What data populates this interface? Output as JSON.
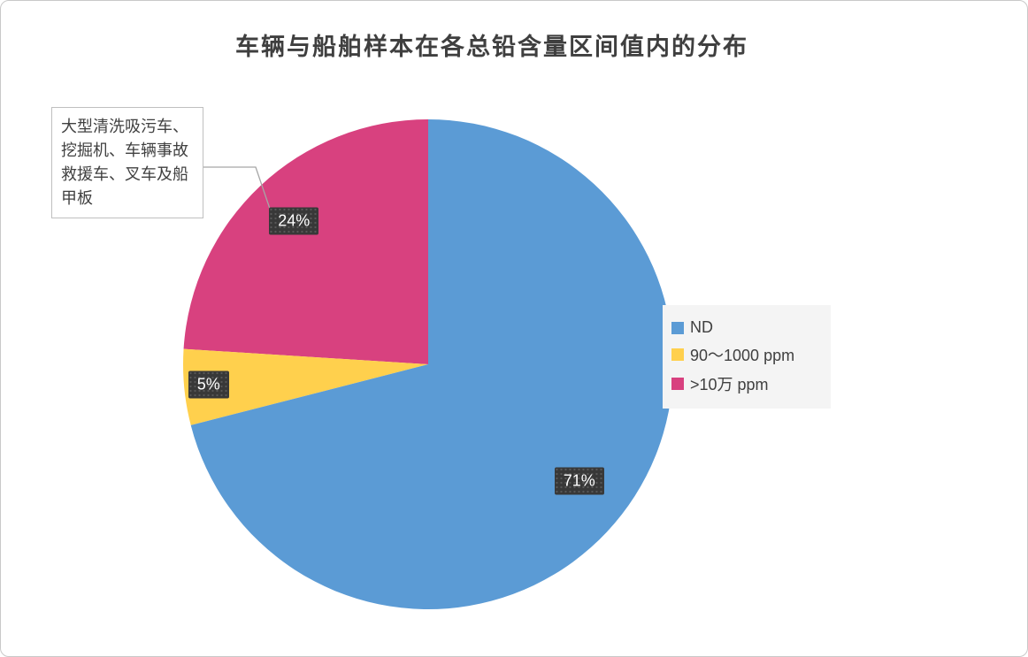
{
  "title": "车辆与船舶样本在各总铅含量区间值内的分布",
  "annotation": {
    "text": "大型清洗吸污车、挖掘机、车辆事故救援车、叉车及船甲板"
  },
  "chart_data": {
    "type": "pie",
    "title": "车辆与船舶样本在各总铅含量区间值内的分布",
    "units": "percent",
    "start_angle_deg": 0,
    "direction": "clockwise",
    "legend_position": "right",
    "data_label_style": "dark-box-white-text",
    "annotation": "大型清洗吸污车、挖掘机、车辆事故救援车、叉车及船甲板",
    "annotation_points_to": ">10万 ppm",
    "slices": [
      {
        "label": "ND",
        "value": 71,
        "display": "71%",
        "color": "#5B9BD5"
      },
      {
        "label": "90～1000 ppm",
        "value": 5,
        "display": "5%",
        "color": "#FFD04D"
      },
      {
        "label": ">10万 ppm",
        "value": 24,
        "display": "24%",
        "color": "#D8417F"
      }
    ]
  }
}
